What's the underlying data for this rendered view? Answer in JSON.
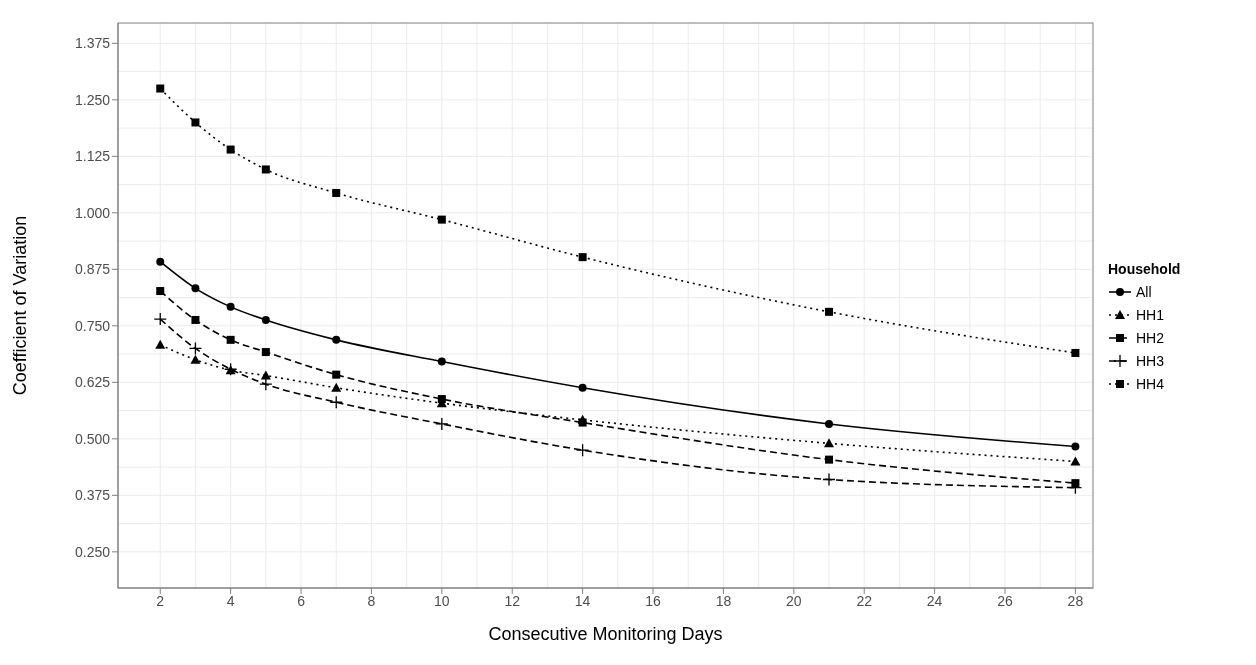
{
  "chart_data": {
    "type": "line",
    "xlabel": "Consecutive Monitoring Days",
    "ylabel": "Coefficient of Variation",
    "legend_title": "Household",
    "legend": "right",
    "grid": true,
    "x": [
      2,
      3,
      4,
      5,
      7,
      10,
      14,
      21,
      28
    ],
    "xlim": [
      0.8,
      28.5
    ],
    "xticks": [
      2,
      4,
      6,
      8,
      10,
      12,
      14,
      16,
      18,
      20,
      22,
      24,
      26,
      28
    ],
    "ylim": [
      0.17,
      1.42
    ],
    "yticks": [
      {
        "value": 0.25,
        "label": "0.250"
      },
      {
        "value": 0.375,
        "label": "0.375"
      },
      {
        "value": 0.5,
        "label": "0.500"
      },
      {
        "value": 0.625,
        "label": "0.625"
      },
      {
        "value": 0.75,
        "label": "0.750"
      },
      {
        "value": 0.875,
        "label": "0.875"
      },
      {
        "value": 1.0,
        "label": "1.000"
      },
      {
        "value": 1.125,
        "label": "1.125"
      },
      {
        "value": 1.25,
        "label": "1.250"
      },
      {
        "value": 1.375,
        "label": "1.375"
      }
    ],
    "series": [
      {
        "name": "All",
        "color": "#000000",
        "marker": "circle",
        "line_style": "solid",
        "values": [
          0.892,
          0.833,
          0.792,
          0.763,
          0.719,
          0.671,
          0.613,
          0.533,
          0.483
        ]
      },
      {
        "name": "HH1",
        "color": "#000000",
        "marker": "triangle",
        "line_style": "dotted",
        "values": [
          0.708,
          0.675,
          0.652,
          0.64,
          0.613,
          0.579,
          0.542,
          0.49,
          0.45
        ]
      },
      {
        "name": "HH2",
        "color": "#000000",
        "marker": "square",
        "line_style": "dashed",
        "values": [
          0.827,
          0.763,
          0.719,
          0.692,
          0.642,
          0.588,
          0.536,
          0.454,
          0.402
        ]
      },
      {
        "name": "HH3",
        "color": "#000000",
        "marker": "cross",
        "line_style": "dashed",
        "values": [
          0.765,
          0.7,
          0.654,
          0.621,
          0.581,
          0.533,
          0.475,
          0.41,
          0.392
        ]
      },
      {
        "name": "HH4",
        "color": "#000000",
        "marker": "square",
        "line_style": "dotted",
        "values": [
          1.275,
          1.2,
          1.14,
          1.096,
          1.044,
          0.985,
          0.902,
          0.781,
          0.69
        ]
      }
    ]
  }
}
